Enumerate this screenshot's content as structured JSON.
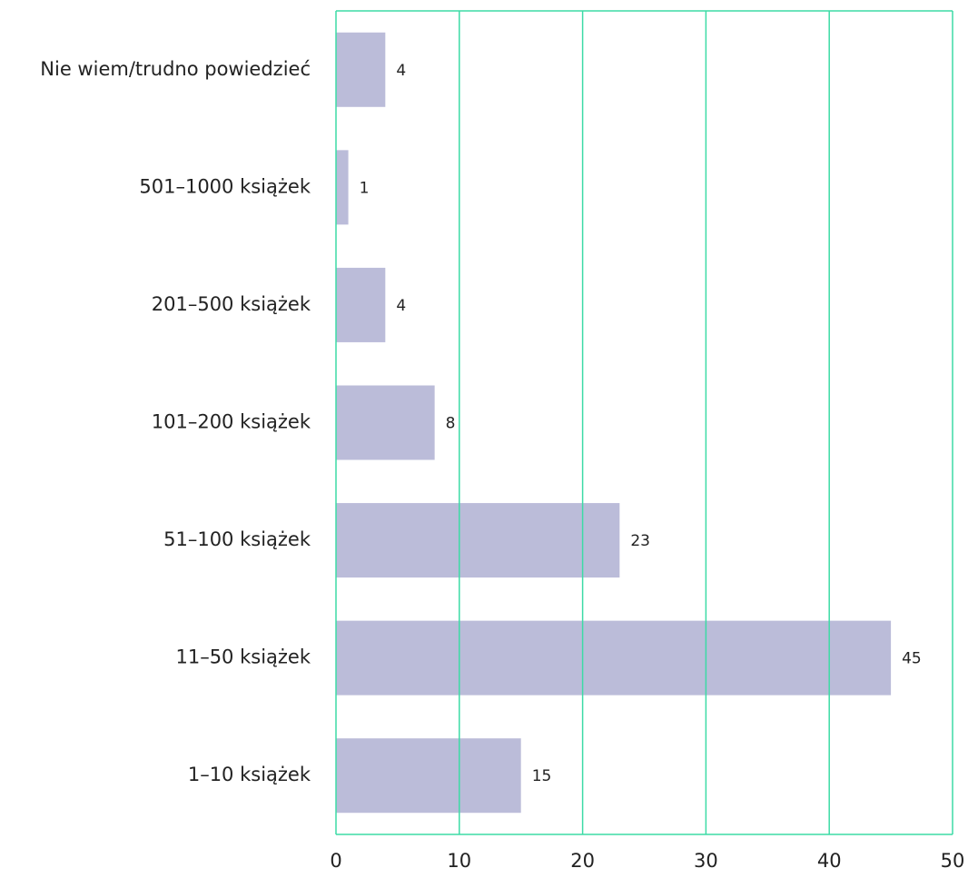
{
  "chart_data": {
    "type": "bar",
    "orientation": "horizontal",
    "title": "",
    "xlabel": "",
    "ylabel": "",
    "categories": [
      "Nie wiem/trudno powiedzieć",
      "501–1000 książek",
      "201–500 książek",
      "101–200 książek",
      "51–100 książek",
      "11–50 książek",
      "1–10 książek"
    ],
    "values": [
      4,
      1,
      4,
      8,
      23,
      45,
      15
    ],
    "value_labels": [
      "4",
      "1",
      "4",
      "8",
      "23",
      "45",
      "15"
    ],
    "xlim": [
      0,
      50
    ],
    "xticks": [
      0,
      10,
      20,
      30,
      40,
      50
    ],
    "xtick_labels": [
      "0",
      "10",
      "20",
      "30",
      "40",
      "50"
    ],
    "grid": "vertical",
    "legend": "none",
    "colors": {
      "bar": "#bbbcd9",
      "grid": "#3ddba6",
      "text": "#222222"
    }
  }
}
